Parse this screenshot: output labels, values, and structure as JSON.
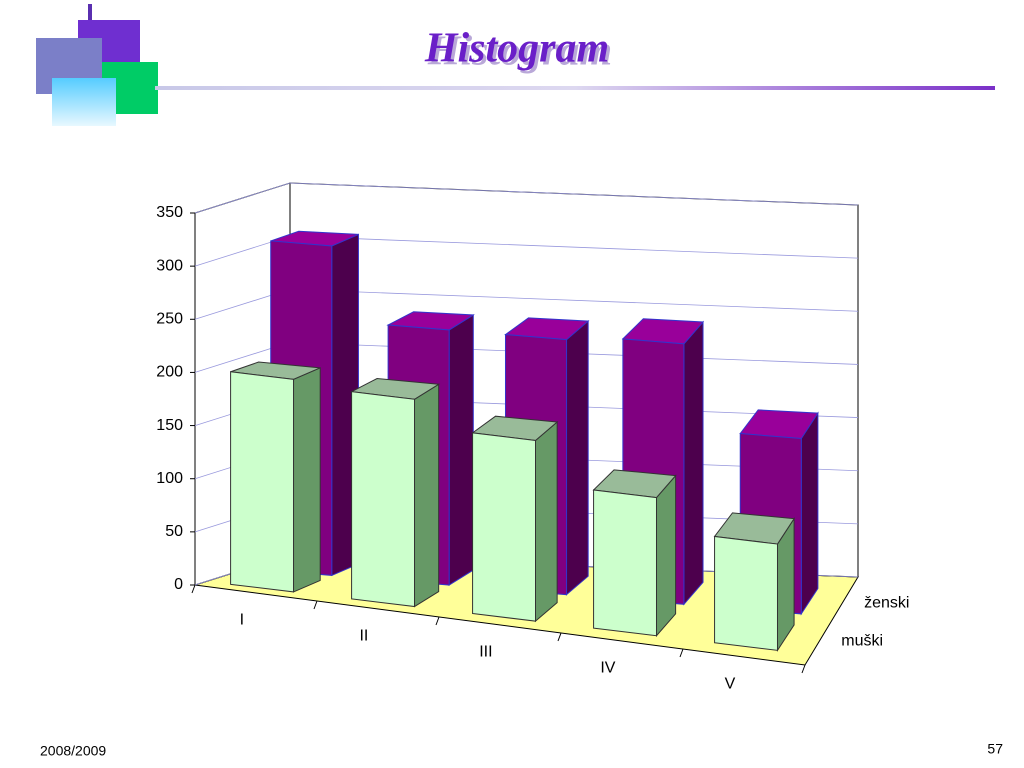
{
  "chart_data": {
    "type": "bar3d",
    "title": "Histogram",
    "categories": [
      "I",
      "II",
      "III",
      "IV",
      "V"
    ],
    "series": [
      {
        "name": "muški",
        "color": "#ccffcc",
        "values": [
          200,
          195,
          170,
          130,
          100
        ]
      },
      {
        "name": "ženski",
        "color": "#800080",
        "values": [
          310,
          240,
          240,
          245,
          165
        ]
      }
    ],
    "ylim": [
      0,
      350
    ],
    "yticks": [
      0,
      50,
      100,
      150,
      200,
      250,
      300,
      350
    ],
    "grid": true
  },
  "footer": {
    "date": "2008/2009",
    "page": "57"
  }
}
